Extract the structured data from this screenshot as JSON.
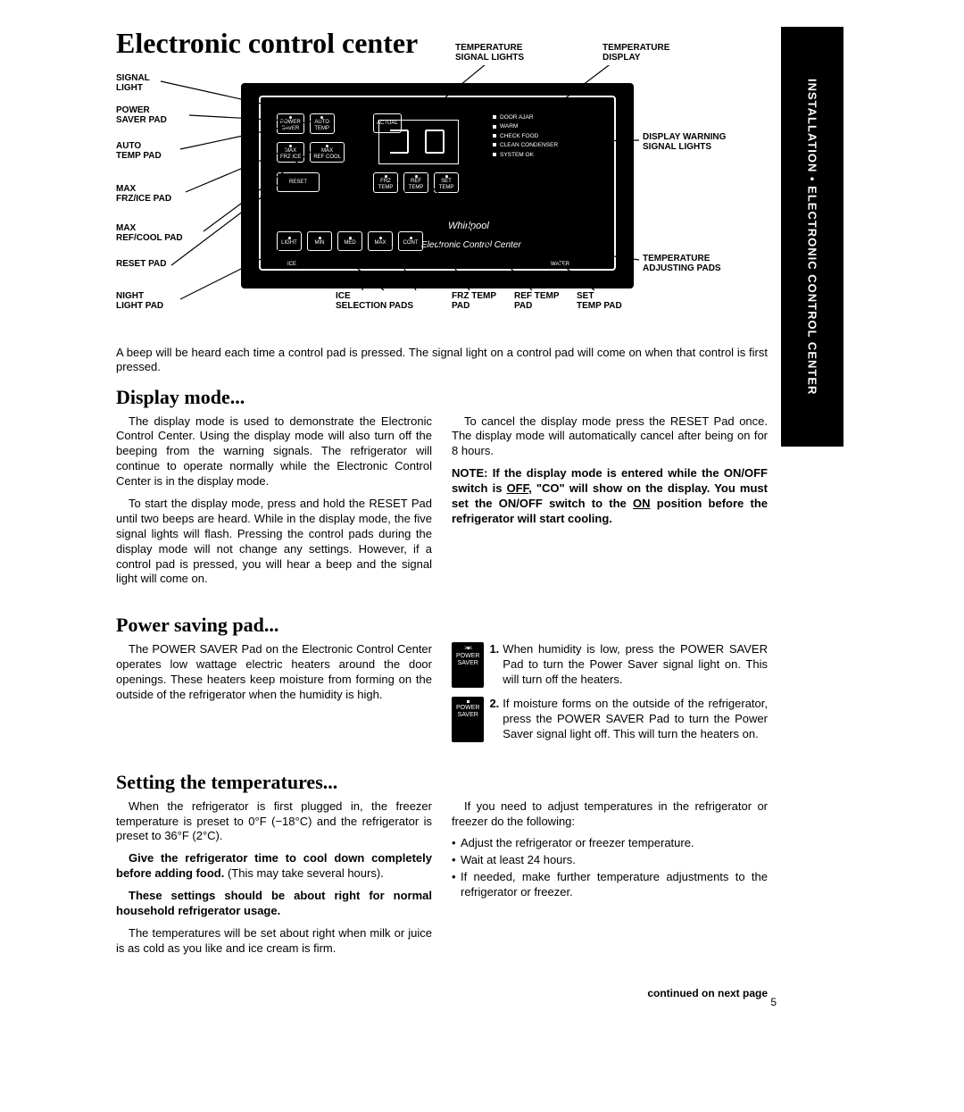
{
  "sidebar_label": "INSTALLATION • ELECTRONIC CONTROL CENTER",
  "title": "Electronic control center",
  "callouts": {
    "temp_signal_lights": "TEMPERATURE\nSIGNAL LIGHTS",
    "temp_display": "TEMPERATURE\nDISPLAY",
    "signal_light": "SIGNAL\nLIGHT",
    "power_saver_pad": "POWER\nSAVER PAD",
    "auto_temp_pad": "AUTO\nTEMP PAD",
    "max_frz_ice_pad": "MAX\nFRZ/ICE PAD",
    "max_ref_cool_pad": "MAX\nREF/COOL PAD",
    "reset_pad": "RESET PAD",
    "night_light_pad": "NIGHT\nLIGHT PAD",
    "display_warning": "DISPLAY WARNING\nSIGNAL LIGHTS",
    "temp_adj_pads": "TEMPERATURE\nADJUSTING PADS",
    "ice_selection_pads": "ICE\nSELECTION PADS",
    "frz_temp_pad": "FRZ TEMP\nPAD",
    "ref_temp_pad": "REF TEMP\nPAD",
    "set_temp_pad": "SET\nTEMP PAD"
  },
  "panel": {
    "btn_power_saver": "POWER\nSAVER",
    "btn_auto_temp": "AUTO\nTEMP",
    "btn_max_frz": "MAX\nFRZ ICE",
    "btn_max_ref": "MAX\nREF COOL",
    "btn_reset": "RESET",
    "btn_frz_temp": "FRZ\nTEMP",
    "btn_ref_temp": "REF\nTEMP",
    "btn_set_temp": "SET\nTEMP",
    "btn_light": "LIGHT",
    "btn_min": "MIN",
    "btn_med": "MED",
    "btn_max": "MAX",
    "btn_cont": "CONT",
    "btn_actual": "ACTUAL",
    "brand": "Whirlpool",
    "subtitle": "Electronic Control Center",
    "label_ice": "ICE",
    "label_water": "WATER",
    "status": {
      "door_ajar": "DOOR AJAR",
      "warm": "WARM",
      "check_food": "CHECK FOOD",
      "clean_condenser": "CLEAN CONDENSER",
      "system_ok": "SYSTEM OK"
    }
  },
  "intro": "A beep will be heard each time a control pad is pressed. The signal light on a control pad will come on when that control is first pressed.",
  "display_mode": {
    "heading": "Display mode...",
    "p1": "The display mode is used to demonstrate the Electronic Control Center. Using the display mode will also turn off the beeping from the warning signals. The refrigerator will continue to operate normally while the Electronic Control Center is in the display mode.",
    "p2": "To start the display mode, press and hold the RESET Pad until two beeps are heard. While in the display mode, the five signal lights will flash. Pressing the control pads during the display mode will not change any settings. However, if a control pad is pressed, you will hear a beep and the signal light will come on.",
    "p3": "To cancel the display mode press the RESET Pad once. The display mode will automatically cancel after being on for 8 hours.",
    "note_prefix": "NOTE: If the display mode is entered while the ON/OFF switch is ",
    "note_off": "OFF,",
    "note_mid": " \"CO\" will show on the display. You must set the ON/OFF switch to the ",
    "note_on": "ON",
    "note_suffix": " position before the refrigerator will start cooling."
  },
  "power_saving": {
    "heading": "Power saving pad...",
    "p1": "The POWER SAVER Pad on the Electronic Control Center operates low wattage electric heaters around the door openings. These heaters keep moisture from forming on the outside of the refrigerator when the humidity is high.",
    "icon_label": "POWER\nSAVER",
    "item1": "When humidity is low, press the POWER SAVER Pad to turn the Power Saver signal light on. This will turn off the heaters.",
    "item2": "If moisture forms on the outside of the refrigerator, press the POWER SAVER Pad to turn the Power Saver signal light off. This will turn the heaters on."
  },
  "setting_temps": {
    "heading": "Setting the temperatures...",
    "p1": "When the refrigerator is first plugged in, the freezer temperature is preset to 0°F (−18°C) and the refrigerator is preset to 36°F (2°C).",
    "p2_bold": "Give the refrigerator time to cool down completely before adding food.",
    "p2_rest": " (This may take several hours).",
    "p3_bold": "These settings should be about right for normal household refrigerator usage.",
    "p4": "The temperatures will be set about right when milk or juice is as cold as you like and ice cream is firm.",
    "p5": "If you need to adjust temperatures in the refrigerator or freezer do the following:",
    "b1": "Adjust the refrigerator or freezer temperature.",
    "b2": "Wait at least 24 hours.",
    "b3": "If needed, make further temperature adjustments to the refrigerator or freezer."
  },
  "footer": "continued on next page",
  "page_number": "5"
}
